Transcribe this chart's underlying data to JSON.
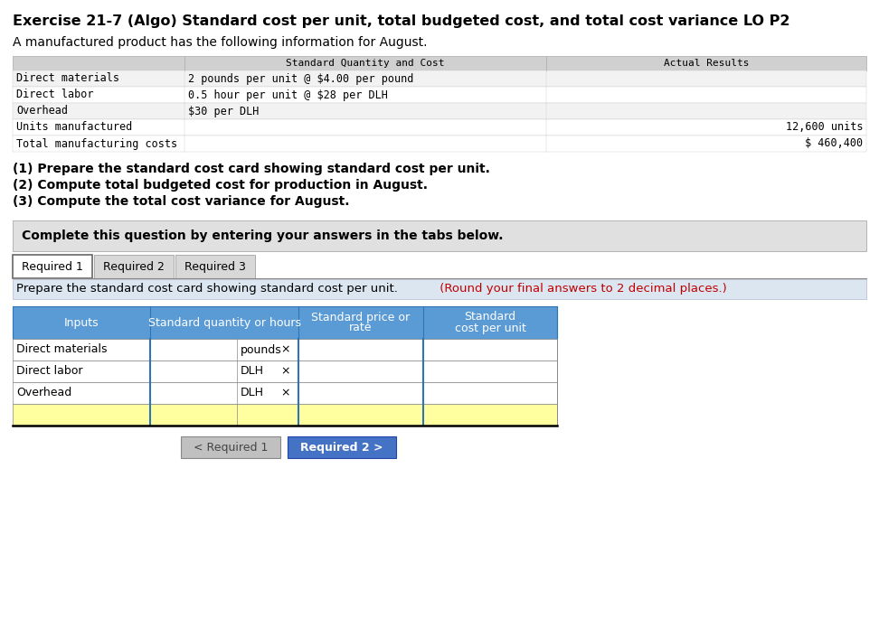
{
  "title": "Exercise 21-7 (Algo) Standard cost per unit, total budgeted cost, and total cost variance LO P2",
  "subtitle": "A manufactured product has the following information for August.",
  "info_table_header_col1": "Standard Quantity and Cost",
  "info_table_header_col2": "Actual Results",
  "info_rows": [
    [
      "Direct materials",
      "2 pounds per unit @ $4.00 per pound",
      ""
    ],
    [
      "Direct labor",
      "0.5 hour per unit @ $28 per DLH",
      ""
    ],
    [
      "Overhead",
      "$30 per DLH",
      ""
    ],
    [
      "Units manufactured",
      "",
      "12,600 units"
    ],
    [
      "Total manufacturing costs",
      "",
      "$ 460,400"
    ]
  ],
  "instructions": [
    "(1) Prepare the standard cost card showing standard cost per unit.",
    "(2) Compute total budgeted cost for production in August.",
    "(3) Compute the total cost variance for August."
  ],
  "complete_text": "Complete this question by entering your answers in the tabs below.",
  "tabs": [
    "Required 1",
    "Required 2",
    "Required 3"
  ],
  "active_tab": 0,
  "tab_instr_normal": "Prepare the standard cost card showing standard cost per unit.",
  "tab_instr_colored": " (Round your final answers to 2 decimal places.)",
  "input_rows": [
    [
      "Direct materials",
      "pounds"
    ],
    [
      "Direct labor",
      "DLH"
    ],
    [
      "Overhead",
      "DLH"
    ],
    [
      "",
      ""
    ]
  ],
  "btn1_text": "< Required 1",
  "btn2_text": "Required 2 >",
  "bg": "#ffffff",
  "info_table_bg": "#f2f2f2",
  "info_header_bg": "#d0d0d0",
  "info_alt_row": "#f2f2f2",
  "info_white_row": "#ffffff",
  "complete_bg": "#e0e0e0",
  "tab_active_bg": "#ffffff",
  "tab_inactive_bg": "#d8d8d8",
  "tab_border": "#888888",
  "tab_instr_bg": "#dce6f1",
  "input_header_bg": "#5b9bd5",
  "input_header_fg": "#ffffff",
  "input_white": "#ffffff",
  "input_yellow": "#ffffa0",
  "input_blue_sep": "#2e75b6",
  "btn1_bg": "#c0c0c0",
  "btn1_fg": "#444444",
  "btn2_bg": "#4472c4",
  "btn2_fg": "#ffffff",
  "mono": "DejaVu Sans Mono",
  "sans": "DejaVu Sans"
}
